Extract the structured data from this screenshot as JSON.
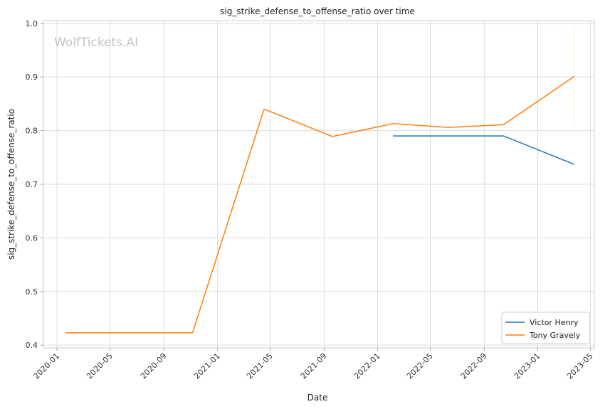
{
  "chart_data": {
    "type": "line",
    "title": "sig_strike_defense_to_offense_ratio over time",
    "xlabel": "Date",
    "ylabel": "sig_strike_defense_to_offense_ratio",
    "watermark": "WolfTickets.AI",
    "xlim": [
      "2019-12-01",
      "2023-05-10"
    ],
    "ylim": [
      0.395,
      1.005
    ],
    "x_ticks": [
      "2020-01",
      "2020-05",
      "2020-09",
      "2021-01",
      "2021-05",
      "2021-09",
      "2022-01",
      "2022-05",
      "2022-09",
      "2023-01",
      "2023-05"
    ],
    "y_ticks": [
      "0.4",
      "0.5",
      "0.6",
      "0.7",
      "0.8",
      "0.9",
      "1.0"
    ],
    "grid": true,
    "legend_position": "bottom-right",
    "series": [
      {
        "name": "Victor Henry",
        "color": "#1f77b4",
        "points": [
          {
            "x": "2022-02-05",
            "y": 0.79
          },
          {
            "x": "2022-10-15",
            "y": 0.79
          },
          {
            "x": "2023-03-25",
            "y": 0.737
          }
        ]
      },
      {
        "name": "Tony Gravely",
        "color": "#ff7f0e",
        "points": [
          {
            "x": "2020-01-20",
            "y": 0.423
          },
          {
            "x": "2020-11-05",
            "y": 0.423
          },
          {
            "x": "2021-04-17",
            "y": 0.84
          },
          {
            "x": "2021-09-20",
            "y": 0.789
          },
          {
            "x": "2022-02-05",
            "y": 0.813
          },
          {
            "x": "2022-06-10",
            "y": 0.806
          },
          {
            "x": "2022-09-25",
            "y": 0.81
          },
          {
            "x": "2022-10-15",
            "y": 0.811
          },
          {
            "x": "2023-03-25",
            "y": 0.901
          }
        ],
        "error_bar": {
          "x": "2023-03-25",
          "low": 0.81,
          "high": 0.99
        }
      }
    ]
  }
}
